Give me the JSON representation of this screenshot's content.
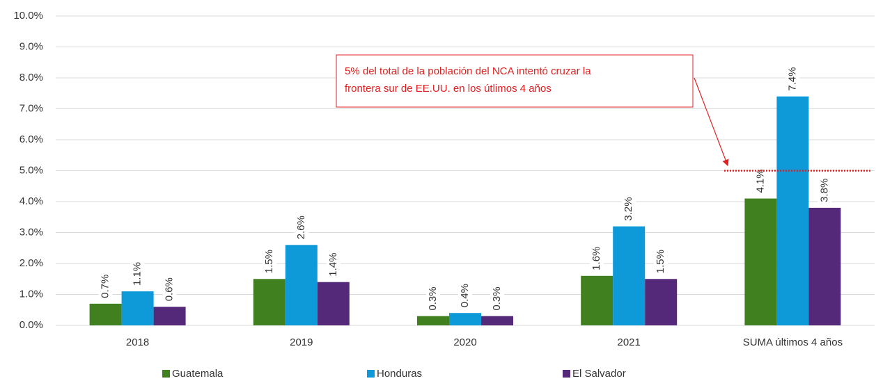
{
  "chart_data": {
    "type": "bar",
    "categories": [
      "2018",
      "2019",
      "2020",
      "2021",
      "SUMA últimos 4 años"
    ],
    "series": [
      {
        "name": "Guatemala",
        "color": "#41801f",
        "values": [
          0.7,
          1.5,
          0.3,
          1.6,
          4.1
        ],
        "value_labels": [
          "0.7%",
          "1.5%",
          "0.3%",
          "1.6%",
          "4.1%"
        ]
      },
      {
        "name": "Honduras",
        "color": "#0e9ad8",
        "values": [
          1.1,
          2.6,
          0.4,
          3.2,
          7.4
        ],
        "value_labels": [
          "1.1%",
          "2.6%",
          "0.4%",
          "3.2%",
          "7.4%"
        ]
      },
      {
        "name": "El Salvador",
        "color": "#55297a",
        "values": [
          0.6,
          1.4,
          0.3,
          1.5,
          3.8
        ],
        "value_labels": [
          "0.6%",
          "1.4%",
          "0.3%",
          "1.5%",
          "3.8%"
        ]
      }
    ],
    "ylim": [
      0,
      10
    ],
    "yticks": [
      {
        "value": 0,
        "label": "0.0%"
      },
      {
        "value": 1,
        "label": "1.0%"
      },
      {
        "value": 2,
        "label": "2.0%"
      },
      {
        "value": 3,
        "label": "3.0%"
      },
      {
        "value": 4,
        "label": "4.0%"
      },
      {
        "value": 5,
        "label": "5.0%"
      },
      {
        "value": 6,
        "label": "6.0%"
      },
      {
        "value": 7,
        "label": "7.0%"
      },
      {
        "value": 8,
        "label": "8.0%"
      },
      {
        "value": 9,
        "label": "9.0%"
      },
      {
        "value": 10,
        "label": "10.0%"
      }
    ],
    "grid": true,
    "reference_line": {
      "value": 5,
      "color": "#e02020"
    },
    "annotation": [
      "5% del total de la población del NCA intentó cruzar la",
      "frontera sur de EE.UU. en los útlimos 4 años"
    ],
    "legend": "bottom"
  }
}
